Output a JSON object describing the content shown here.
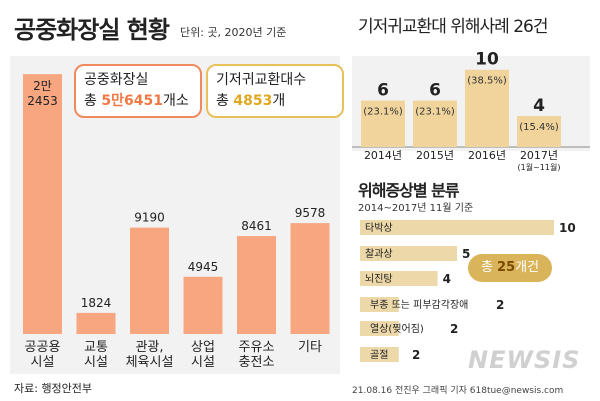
{
  "header": {
    "title": "공중화장실 현황",
    "unit": "단위: 곳, 2020년 기준"
  },
  "boxes": {
    "toilets": {
      "label": "공중화장실",
      "prefix": "총 ",
      "value": "5만6451",
      "suffix": "개소"
    },
    "diapers": {
      "label": "기저귀교환대수",
      "prefix": "총 ",
      "value": "4853",
      "suffix": "개"
    }
  },
  "right_top_title": "기저귀교환대 위해사례 26건",
  "right_bottom": {
    "title": "위해증상별 분류",
    "subtitle": "2014~2017년 11월 기준"
  },
  "badge": {
    "prefix": "총 ",
    "value": "25",
    "suffix": "개건"
  },
  "footer": {
    "source": "자료: 행정안전부",
    "credit": "21.08.16 전진우 그래픽 기자 618tue@newsis.com",
    "logo": "NEWSIS"
  },
  "colors": {
    "bar_orange": "#f7a680",
    "bar_tan": "#f0d49c",
    "bar_tan_side": "#ecd8a8",
    "panel": "#f2f2f2"
  },
  "chart_data": [
    {
      "type": "bar",
      "categories": [
        [
          "공공용",
          "시설"
        ],
        [
          "교통",
          "시설"
        ],
        [
          "관광,",
          "체육시설"
        ],
        [
          "상업",
          "시설"
        ],
        [
          "주유소",
          "충전소"
        ],
        [
          "기타"
        ]
      ],
      "labels": [
        [
          "2만",
          "2453"
        ],
        [
          "1824"
        ],
        [
          "9190"
        ],
        [
          "4945"
        ],
        [
          "8461"
        ],
        [
          "9578"
        ]
      ],
      "values": [
        22453,
        1824,
        9190,
        4945,
        8461,
        9578
      ],
      "ylim": [
        0,
        23500
      ]
    },
    {
      "type": "bar",
      "title": "기저귀교환대 위해사례 26건",
      "categories": [
        [
          "2014년"
        ],
        [
          "2015년"
        ],
        [
          "2016년"
        ],
        [
          "2017년",
          "(1월~11월)"
        ]
      ],
      "values": [
        6,
        6,
        10,
        4
      ],
      "percent_labels": [
        "(23.1%)",
        "(23.1%)",
        "(38.5%)",
        "(15.4%)"
      ],
      "ylim": [
        0,
        11
      ]
    },
    {
      "type": "bar",
      "orientation": "horizontal",
      "title": "위해증상별 분류",
      "categories": [
        "타박상",
        "찰과상",
        "뇌진탕",
        "부종 또는 피부감각장애",
        "열상(찢어짐)",
        "골절"
      ],
      "values": [
        10,
        5,
        4,
        2,
        2,
        2
      ],
      "xlim": [
        0,
        10
      ]
    }
  ]
}
